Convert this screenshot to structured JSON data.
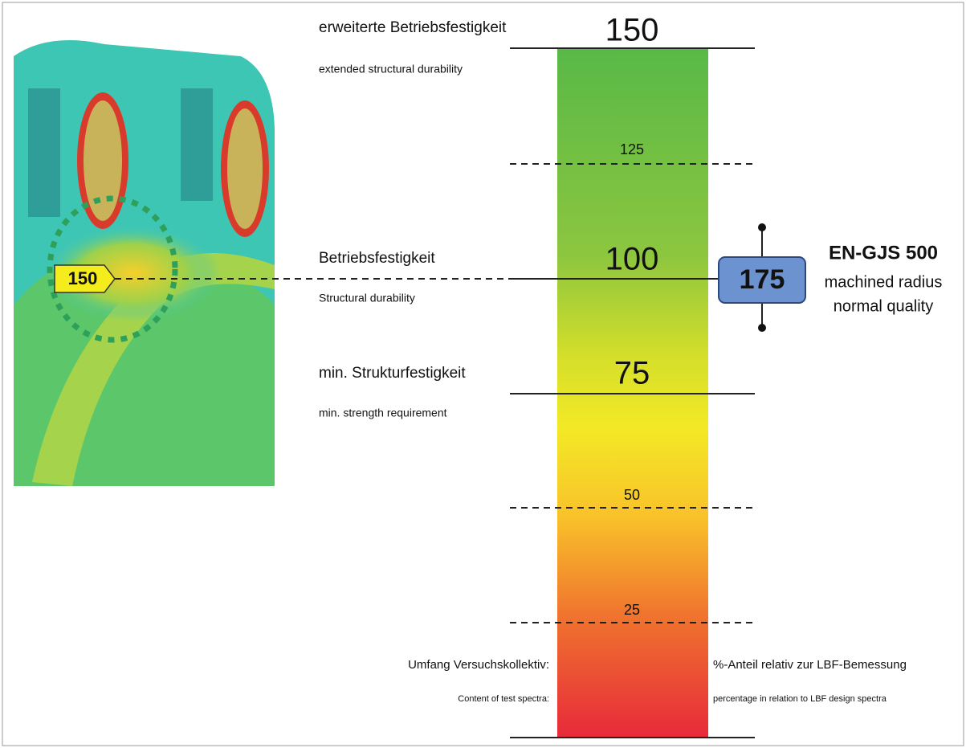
{
  "header": {
    "title_de": "erweiterte Betriebsfestigkeit",
    "title_en": "extended structural durability"
  },
  "levels": {
    "extended": {
      "value": "150",
      "de": "erweiterte Betriebsfestigkeit",
      "en": "extended structural durability"
    },
    "l125": "125",
    "structural": {
      "value": "100",
      "de": "Betriebsfestigkeit",
      "en": "Structural durability"
    },
    "minimum": {
      "value": "75",
      "de": "min. Strukturfestigkeit",
      "en": "min. strength requirement"
    },
    "l50": "50",
    "l25": "25"
  },
  "marker": "150",
  "material": {
    "value": "175",
    "name": "EN-GJS 500",
    "line1": "machined radius",
    "line2": "normal quality"
  },
  "footer": {
    "left_de": "Umfang Versuchskollektiv:",
    "left_en": "Content of test spectra:",
    "right_de": "%-Anteil relativ zur LBF-Bemessung",
    "right_en": "percentage in relation to LBF design spectra"
  }
}
